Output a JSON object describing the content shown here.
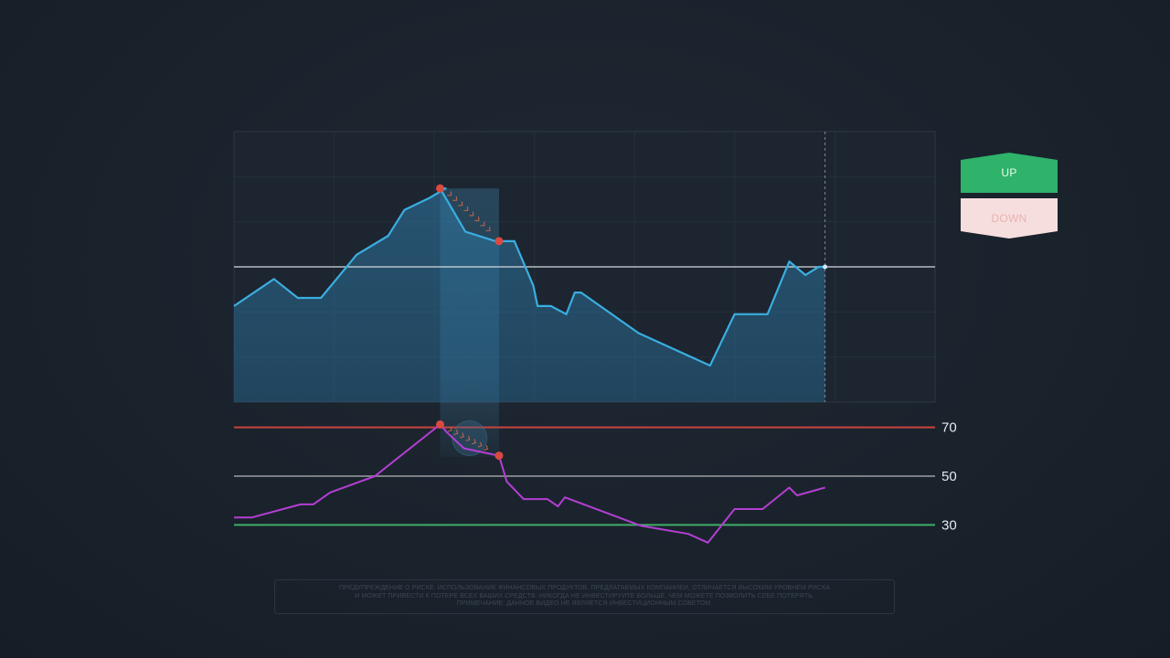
{
  "buttons": {
    "up_label": "UP",
    "down_label": "DOWN"
  },
  "colors": {
    "price_line": "#3aaee0",
    "rsi_line": "#b43fd3",
    "overbought": "#c8433f",
    "neutral": "#7c7f85",
    "oversold": "#3fae6a",
    "marker": "#d94a40",
    "up_button": "#2fb26a",
    "down_button": "#f7dede"
  },
  "disclaimer": {
    "line1": "ПРЕДУПРЕЖДЕНИЕ О РИСКЕ: ИСПОЛЬЗОВАНИЕ ФИНАНСОВЫХ ПРОДУКТОВ, ПРЕДЛАГАЕМЫХ КОМПАНИЕЙ, ОТЛИЧАЕТСЯ ВЫСОКИМ УРОВНЕМ РИСКА",
    "line2": "И МОЖЕТ ПРИВЕСТИ К ПОТЕРЕ ВСЕХ ВАШИХ СРЕДСТВ. НИКОГДА НЕ ИНВЕСТИРУЙТЕ БОЛЬШЕ, ЧЕМ МОЖЕТЕ ПОЗВОЛИТЬ СЕБЕ ПОТЕРЯТЬ.",
    "line3": "ПРИМЕЧАНИЕ: ДАННОЕ ВИДЕО НЕ ЯВЛЯЕТСЯ ИНВЕСТИЦИОННЫМ СОВЕТОМ."
  },
  "chart_data": [
    {
      "type": "area",
      "title": "",
      "xlim": [
        0,
        100
      ],
      "ylim": [
        0,
        100
      ],
      "grid": true,
      "x": [
        0,
        5.7,
        9.1,
        12.4,
        17.5,
        22,
        24.3,
        27.9,
        30.2,
        29.4,
        33,
        37.3,
        40,
        42.7,
        43.3,
        45.2,
        47.4,
        48.6,
        49.5,
        57.7,
        67.9,
        71.4,
        76.1,
        79.2,
        81.5,
        83.4,
        84.3
      ],
      "y": [
        35.5,
        45.5,
        38.5,
        38.5,
        54.5,
        61.5,
        71,
        75.5,
        79,
        79,
        63,
        59.5,
        59.5,
        43,
        35.5,
        35.5,
        32.5,
        40.5,
        40.5,
        25.5,
        13.5,
        32.5,
        32.5,
        52,
        47,
        50,
        50
      ],
      "reference_line_y": 50,
      "cursor_x": 84.3,
      "highlight_x_range": [
        29.4,
        37.8
      ],
      "markers": [
        {
          "x": 29.4,
          "y": 79
        },
        {
          "x": 37.8,
          "y": 59.5
        }
      ]
    },
    {
      "type": "line",
      "title": "",
      "xlim": [
        0,
        100
      ],
      "ylim": [
        20,
        80
      ],
      "x": [
        0,
        2.5,
        9.5,
        11.3,
        13.7,
        20.1,
        29.4,
        30.4,
        32.8,
        37.8,
        38.9,
        41.3,
        44.7,
        46.2,
        47.2,
        58.1,
        64.8,
        67.6,
        71.4,
        75.4,
        79.2,
        80.3,
        84.3
      ],
      "y": [
        33,
        33,
        38.4,
        38.4,
        43.3,
        50,
        71.2,
        67.9,
        61.4,
        58.4,
        47.8,
        40.6,
        40.6,
        37.6,
        41.3,
        29.6,
        26.3,
        22.7,
        36.5,
        36.5,
        45.3,
        42.1,
        45.3
      ],
      "levels": [
        {
          "label": "70",
          "value": 70
        },
        {
          "label": "50",
          "value": 50
        },
        {
          "label": "30",
          "value": 30
        }
      ],
      "markers": [
        {
          "x": 29.4,
          "y": 71.2
        },
        {
          "x": 37.8,
          "y": 58.4
        }
      ]
    }
  ]
}
